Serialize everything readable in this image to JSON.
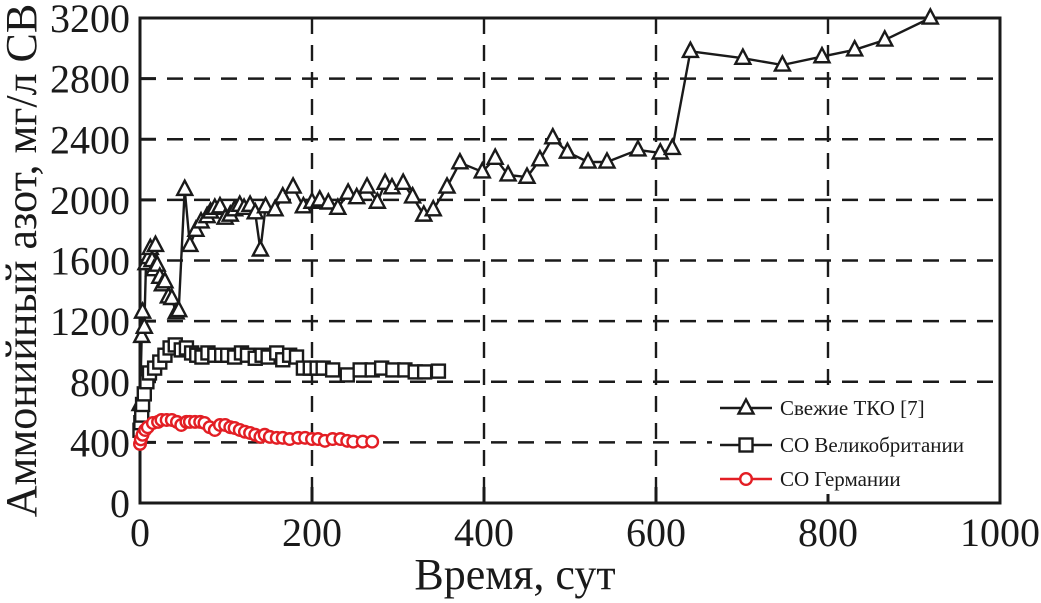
{
  "chart_data": {
    "type": "line",
    "title": "",
    "xlabel": "Время, сут",
    "ylabel": "Аммонийный азот, мг/л СВ",
    "xlim": [
      0,
      1000
    ],
    "ylim": [
      0,
      3200
    ],
    "xticks": [
      0,
      200,
      400,
      600,
      800,
      1000
    ],
    "yticks": [
      0,
      400,
      800,
      1200,
      1600,
      2000,
      2400,
      2800,
      3200
    ],
    "grid": {
      "style": "dashed",
      "x_values": [
        200,
        400,
        600,
        800
      ],
      "y_values": [
        400,
        800,
        1200,
        1600,
        2000,
        2400,
        2800
      ]
    },
    "axis_color": "#1a1a1a",
    "legend": {
      "position": "inside-lower-right",
      "border": false
    },
    "series": [
      {
        "key": "fresh-tko",
        "name": "Свежие ТКО [7]",
        "marker": "triangle",
        "color": "#1a1a1a",
        "points": [
          [
            0,
            650
          ],
          [
            2,
            1100
          ],
          [
            3,
            1260
          ],
          [
            5,
            1160
          ],
          [
            7,
            1580
          ],
          [
            10,
            1620
          ],
          [
            12,
            1680
          ],
          [
            14,
            1600
          ],
          [
            16,
            1540
          ],
          [
            18,
            1700
          ],
          [
            20,
            1570
          ],
          [
            23,
            1490
          ],
          [
            26,
            1440
          ],
          [
            29,
            1460
          ],
          [
            33,
            1360
          ],
          [
            37,
            1350
          ],
          [
            42,
            1255
          ],
          [
            45,
            1270
          ],
          [
            52,
            2070
          ],
          [
            58,
            1700
          ],
          [
            65,
            1800
          ],
          [
            71,
            1855
          ],
          [
            78,
            1890
          ],
          [
            82,
            1920
          ],
          [
            87,
            1945
          ],
          [
            93,
            1955
          ],
          [
            99,
            1880
          ],
          [
            105,
            1900
          ],
          [
            110,
            1935
          ],
          [
            116,
            1965
          ],
          [
            121,
            1945
          ],
          [
            128,
            1965
          ],
          [
            134,
            1915
          ],
          [
            140,
            1670
          ],
          [
            146,
            1955
          ],
          [
            157,
            1935
          ],
          [
            166,
            2020
          ],
          [
            178,
            2085
          ],
          [
            190,
            1955
          ],
          [
            200,
            1985
          ],
          [
            209,
            2000
          ],
          [
            219,
            1980
          ],
          [
            230,
            1945
          ],
          [
            242,
            2045
          ],
          [
            252,
            2015
          ],
          [
            264,
            2085
          ],
          [
            276,
            1985
          ],
          [
            285,
            2110
          ],
          [
            293,
            2080
          ],
          [
            306,
            2110
          ],
          [
            317,
            2020
          ],
          [
            330,
            1900
          ],
          [
            341,
            1935
          ],
          [
            357,
            2085
          ],
          [
            372,
            2245
          ],
          [
            398,
            2185
          ],
          [
            413,
            2275
          ],
          [
            428,
            2165
          ],
          [
            450,
            2150
          ],
          [
            465,
            2265
          ],
          [
            480,
            2410
          ],
          [
            497,
            2315
          ],
          [
            521,
            2250
          ],
          [
            543,
            2250
          ],
          [
            579,
            2330
          ],
          [
            605,
            2310
          ],
          [
            619,
            2340
          ],
          [
            640,
            2980
          ],
          [
            701,
            2935
          ],
          [
            747,
            2890
          ],
          [
            793,
            2945
          ],
          [
            831,
            2990
          ],
          [
            866,
            3055
          ],
          [
            919,
            3200
          ]
        ]
      },
      {
        "key": "uk-so",
        "name": "СО Великобритании",
        "marker": "square",
        "color": "#1a1a1a",
        "points": [
          [
            0,
            480
          ],
          [
            1,
            530
          ],
          [
            2,
            580
          ],
          [
            3,
            650
          ],
          [
            5,
            720
          ],
          [
            8,
            800
          ],
          [
            11,
            858
          ],
          [
            17,
            890
          ],
          [
            23,
            930
          ],
          [
            29,
            975
          ],
          [
            35,
            1023
          ],
          [
            41,
            1043
          ],
          [
            48,
            1010
          ],
          [
            54,
            1023
          ],
          [
            60,
            990
          ],
          [
            66,
            975
          ],
          [
            72,
            963
          ],
          [
            79,
            990
          ],
          [
            87,
            975
          ],
          [
            95,
            975
          ],
          [
            102,
            975
          ],
          [
            110,
            963
          ],
          [
            118,
            990
          ],
          [
            125,
            975
          ],
          [
            134,
            955
          ],
          [
            142,
            975
          ],
          [
            149,
            963
          ],
          [
            159,
            990
          ],
          [
            166,
            945
          ],
          [
            174,
            975
          ],
          [
            182,
            963
          ],
          [
            190,
            890
          ],
          [
            198,
            890
          ],
          [
            206,
            890
          ],
          [
            213,
            890
          ],
          [
            224,
            878
          ],
          [
            241,
            845
          ],
          [
            256,
            878
          ],
          [
            270,
            878
          ],
          [
            281,
            890
          ],
          [
            294,
            878
          ],
          [
            308,
            878
          ],
          [
            320,
            865
          ],
          [
            331,
            865
          ],
          [
            347,
            870
          ]
        ]
      },
      {
        "key": "germany-so",
        "name": "СО Германии",
        "marker": "circle",
        "color": "#e31e24",
        "points": [
          [
            0,
            390
          ],
          [
            1,
            420
          ],
          [
            3,
            450
          ],
          [
            6,
            482
          ],
          [
            9,
            500
          ],
          [
            15,
            528
          ],
          [
            21,
            535
          ],
          [
            25,
            548
          ],
          [
            31,
            548
          ],
          [
            37,
            548
          ],
          [
            43,
            535
          ],
          [
            48,
            515
          ],
          [
            54,
            535
          ],
          [
            58,
            535
          ],
          [
            64,
            535
          ],
          [
            70,
            535
          ],
          [
            75,
            528
          ],
          [
            81,
            500
          ],
          [
            87,
            482
          ],
          [
            93,
            515
          ],
          [
            99,
            515
          ],
          [
            105,
            500
          ],
          [
            110,
            495
          ],
          [
            116,
            482
          ],
          [
            122,
            470
          ],
          [
            128,
            462
          ],
          [
            134,
            450
          ],
          [
            140,
            436
          ],
          [
            145,
            450
          ],
          [
            151,
            436
          ],
          [
            159,
            430
          ],
          [
            166,
            430
          ],
          [
            174,
            422
          ],
          [
            184,
            430
          ],
          [
            192,
            430
          ],
          [
            200,
            422
          ],
          [
            207,
            422
          ],
          [
            215,
            410
          ],
          [
            224,
            422
          ],
          [
            233,
            422
          ],
          [
            241,
            410
          ],
          [
            248,
            405
          ],
          [
            259,
            405
          ],
          [
            270,
            405
          ]
        ]
      }
    ]
  }
}
